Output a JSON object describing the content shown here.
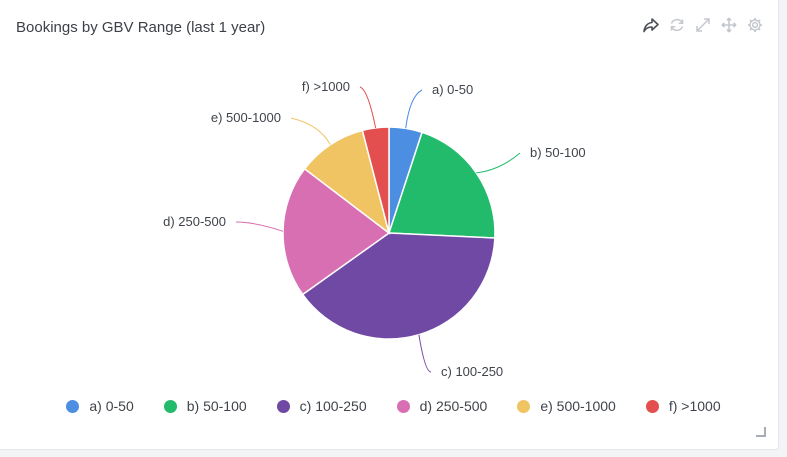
{
  "card": {
    "title": "Bookings by GBV Range (last 1 year)"
  },
  "toolbar": {
    "icons": [
      "share-icon",
      "refresh-icon",
      "expand-icon",
      "move-icon",
      "gear-icon"
    ]
  },
  "chart_data": {
    "type": "pie",
    "title": "Bookings by GBV Range (last 1 year)",
    "categories": [
      "a) 0-50",
      "b) 50-100",
      "c) 100-250",
      "d) 250-500",
      "e) 500-1000",
      "f) >1000"
    ],
    "values": [
      5.0,
      20.5,
      39.0,
      20.0,
      10.5,
      4.0
    ],
    "colors": [
      "#4c8ee2",
      "#22bb6c",
      "#7049a4",
      "#d96fb3",
      "#f0c462",
      "#e34e4e"
    ],
    "legend": "bottom"
  }
}
